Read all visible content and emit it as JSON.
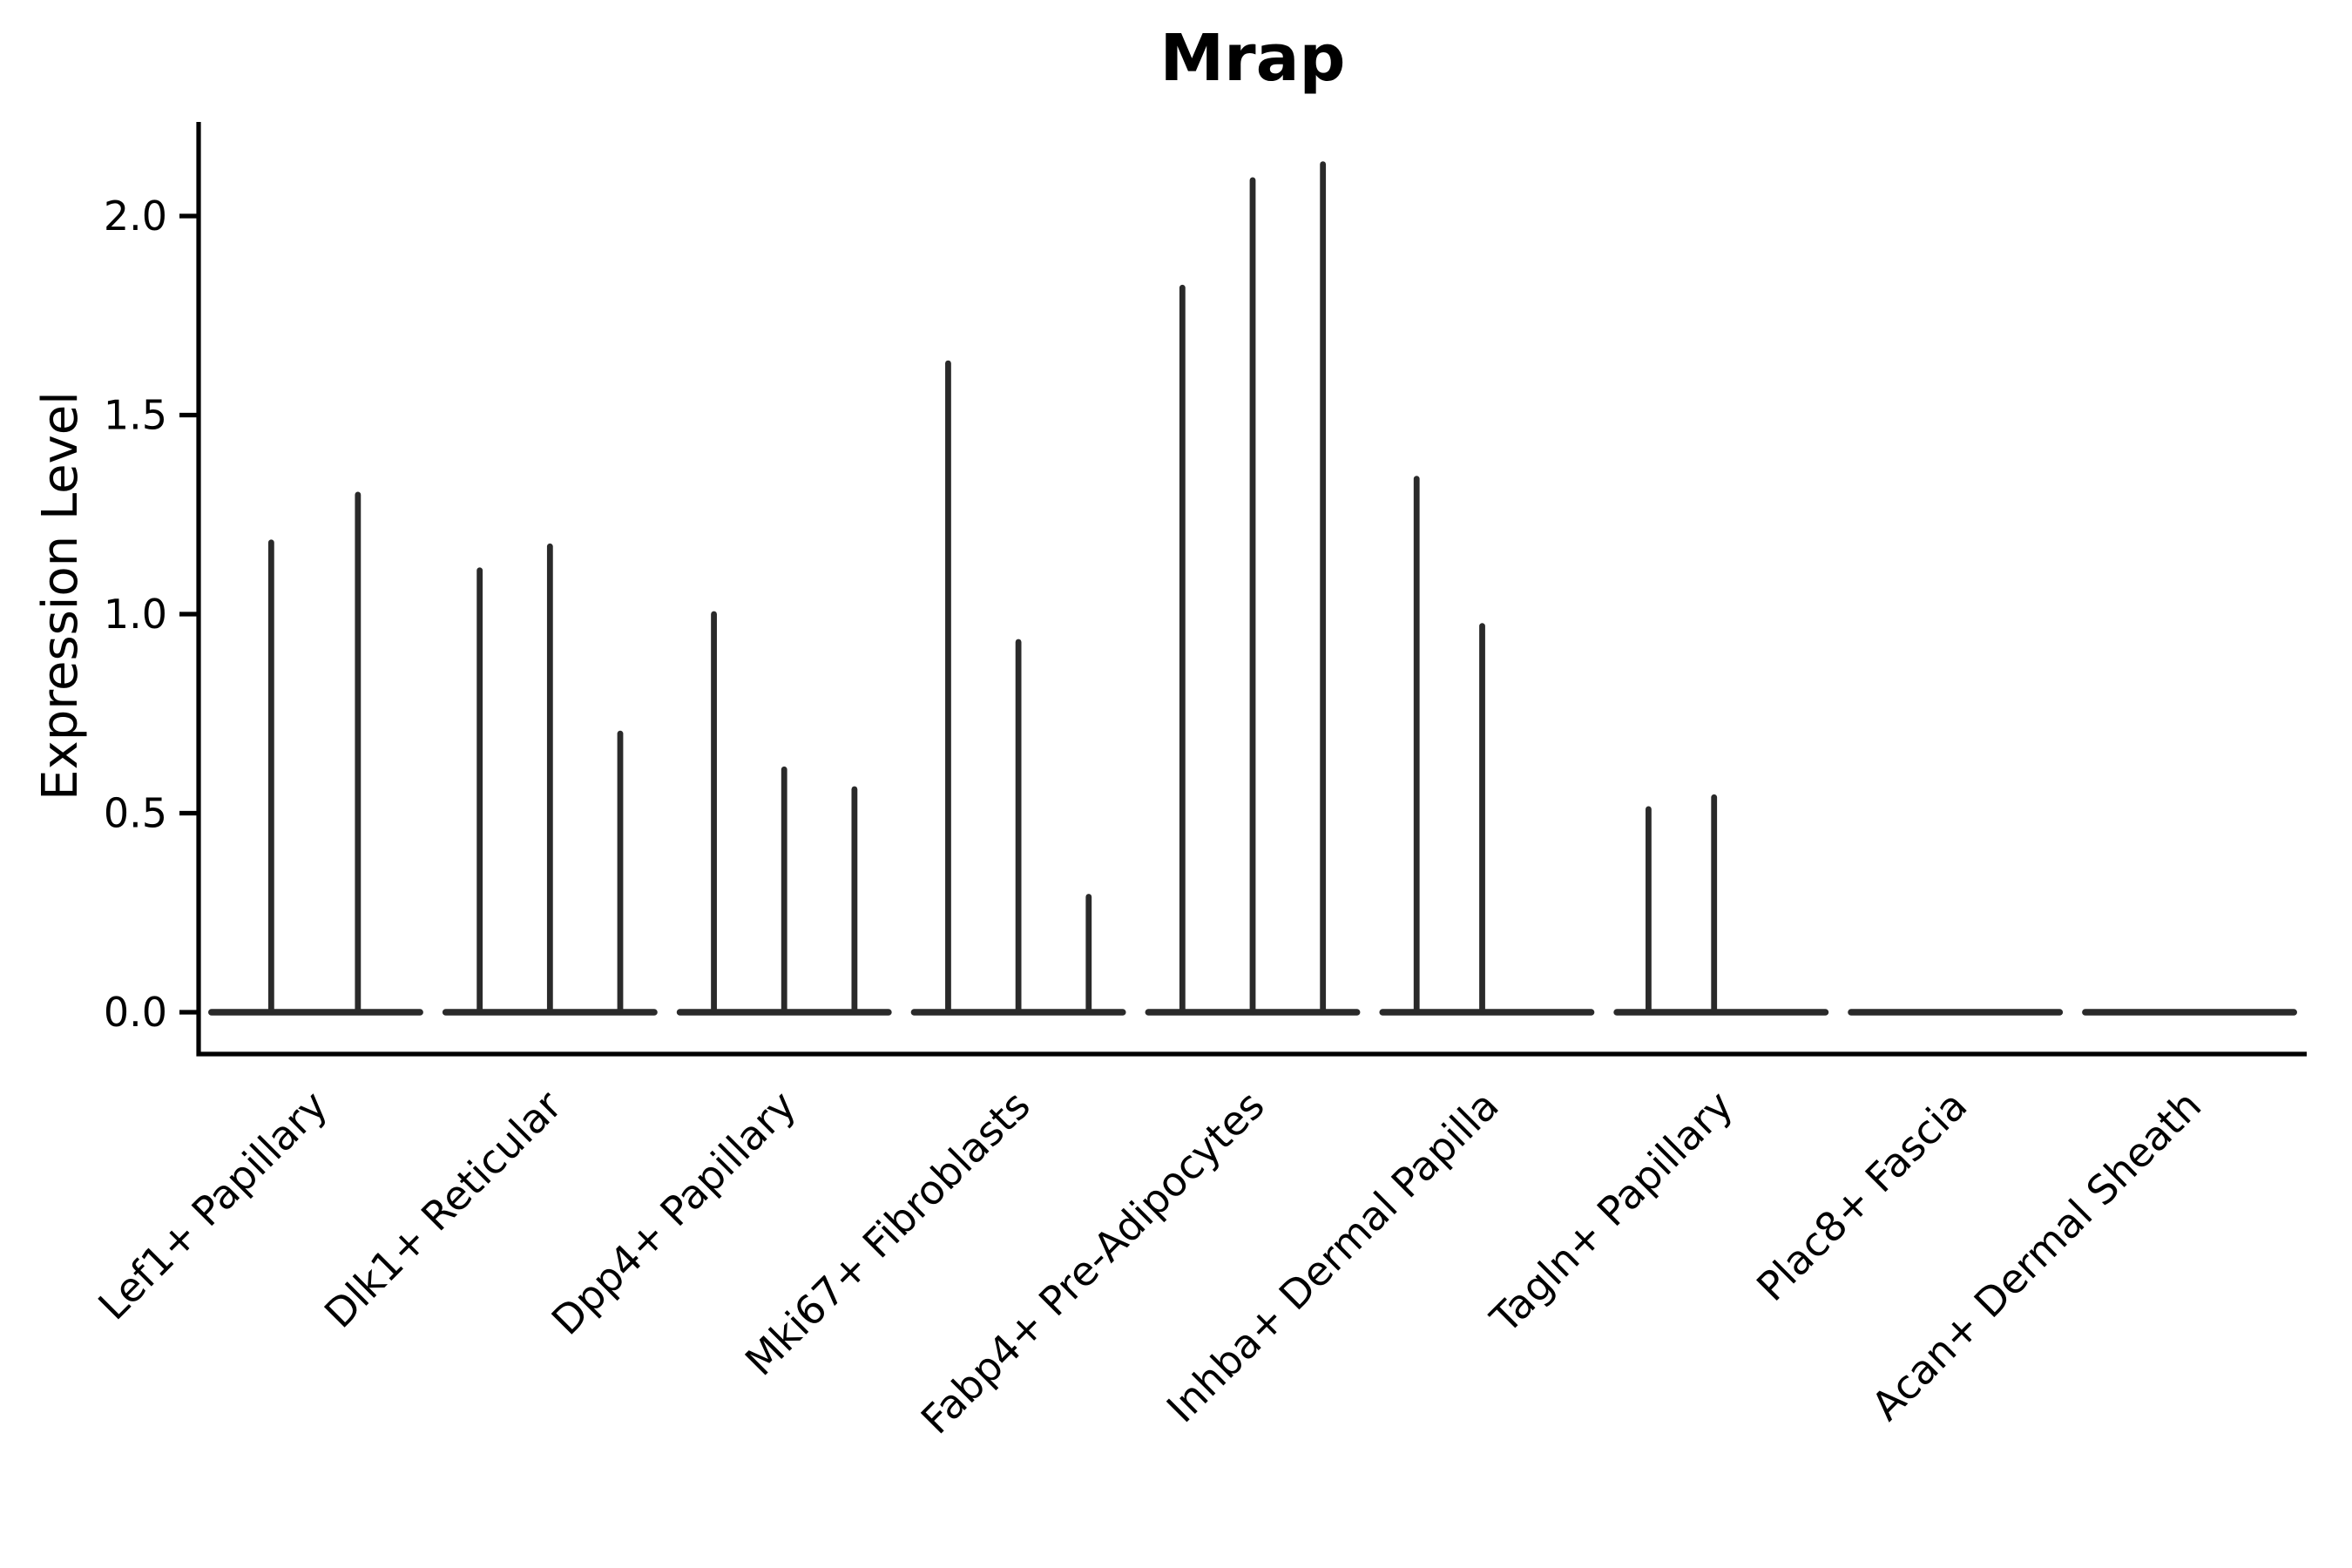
{
  "chart_data": {
    "type": "violin",
    "title": "Mrap",
    "ylabel": "Expression Level",
    "xlabel": "",
    "ylim": [
      -0.1,
      2.24
    ],
    "yticks": [
      "0.0",
      "0.5",
      "1.0",
      "1.5",
      "2.0"
    ],
    "ytick_values": [
      0.0,
      0.5,
      1.0,
      1.5,
      2.0
    ],
    "grid": false,
    "legend": "none",
    "x_tick_rotation_deg": 45,
    "categories": [
      "Lef1+ Papillary",
      "Dlk1+ Reticular",
      "Dpp4+ Papillary",
      "Mki67+ Fibroblasts",
      "Fabp4+ Pre-Adipocytes",
      "Inhba+ Dermal Papilla",
      "Tagln+ Papillary",
      "Plac8+ Fascia",
      "Acan+ Dermal Sheath"
    ],
    "groups": [
      {
        "category": "Lef1+ Papillary",
        "violins": [
          {
            "offset": -0.19,
            "max": 1.18
          },
          {
            "offset": 0.18,
            "max": 1.3
          }
        ]
      },
      {
        "category": "Dlk1+ Reticular",
        "violins": [
          {
            "offset": -0.3,
            "max": 1.11
          },
          {
            "offset": 0.0,
            "max": 1.17
          },
          {
            "offset": 0.3,
            "max": 0.7
          }
        ]
      },
      {
        "category": "Dpp4+ Papillary",
        "violins": [
          {
            "offset": -0.3,
            "max": 1.0
          },
          {
            "offset": 0.0,
            "max": 0.61
          },
          {
            "offset": 0.3,
            "max": 0.56
          }
        ]
      },
      {
        "category": "Mki67+ Fibroblasts",
        "violins": [
          {
            "offset": -0.3,
            "max": 1.63
          },
          {
            "offset": 0.0,
            "max": 0.93
          },
          {
            "offset": 0.3,
            "max": 0.29
          }
        ]
      },
      {
        "category": "Fabp4+ Pre-Adipocytes",
        "violins": [
          {
            "offset": -0.3,
            "max": 1.82
          },
          {
            "offset": 0.0,
            "max": 2.09
          },
          {
            "offset": 0.3,
            "max": 2.13
          }
        ]
      },
      {
        "category": "Inhba+ Dermal Papilla",
        "violins": [
          {
            "offset": -0.3,
            "max": 1.34
          },
          {
            "offset": -0.02,
            "max": 0.97
          }
        ]
      },
      {
        "category": "Tagln+ Papillary",
        "violins": [
          {
            "offset": -0.31,
            "max": 0.51
          },
          {
            "offset": -0.03,
            "max": 0.54
          }
        ]
      },
      {
        "category": "Plac8+ Fascia",
        "violins": []
      },
      {
        "category": "Acan+ Dermal Sheath",
        "violins": []
      }
    ],
    "baseline_value": 0.0
  },
  "style": {
    "violin_color": "#2a2a2a",
    "axis_color": "#000000",
    "background": "#ffffff"
  }
}
